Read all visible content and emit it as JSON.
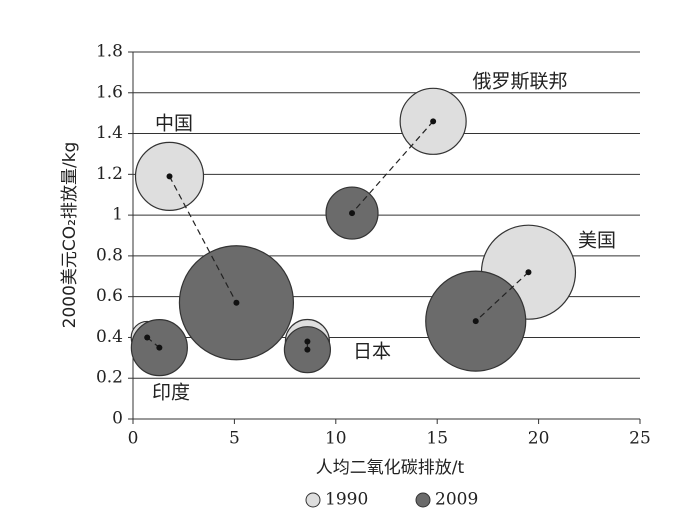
{
  "chart_data": {
    "type": "bubble",
    "xlabel": "人均二氧化碳排放/t",
    "ylabel": "2000美元CO₂排放量/kg",
    "xlim": [
      0,
      25
    ],
    "xticks": [
      0,
      5,
      10,
      15,
      20,
      25
    ],
    "ylim": [
      0,
      1.8
    ],
    "yticks": [
      0,
      0.2,
      0.4,
      0.6,
      0.8,
      1,
      1.2,
      1.4,
      1.6,
      1.8
    ],
    "grid": true,
    "legend": "bottom",
    "annotations": [
      "中国",
      "俄罗斯联邦",
      "美国",
      "日本",
      "印度"
    ],
    "series": [
      {
        "name": "1990",
        "color": "#dedede",
        "x": [
          1.8,
          14.8,
          19.5,
          8.6,
          0.7
        ],
        "values": [
          1.19,
          1.46,
          0.72,
          0.38,
          0.4
        ],
        "sizes": [
          34,
          33,
          47,
          22,
          16
        ]
      },
      {
        "name": "2009",
        "color": "#6b6b6b",
        "x": [
          5.1,
          10.8,
          16.9,
          8.6,
          1.3
        ],
        "values": [
          0.57,
          1.01,
          0.48,
          0.34,
          0.35
        ],
        "sizes": [
          57,
          26,
          50,
          23,
          28
        ]
      }
    ]
  }
}
